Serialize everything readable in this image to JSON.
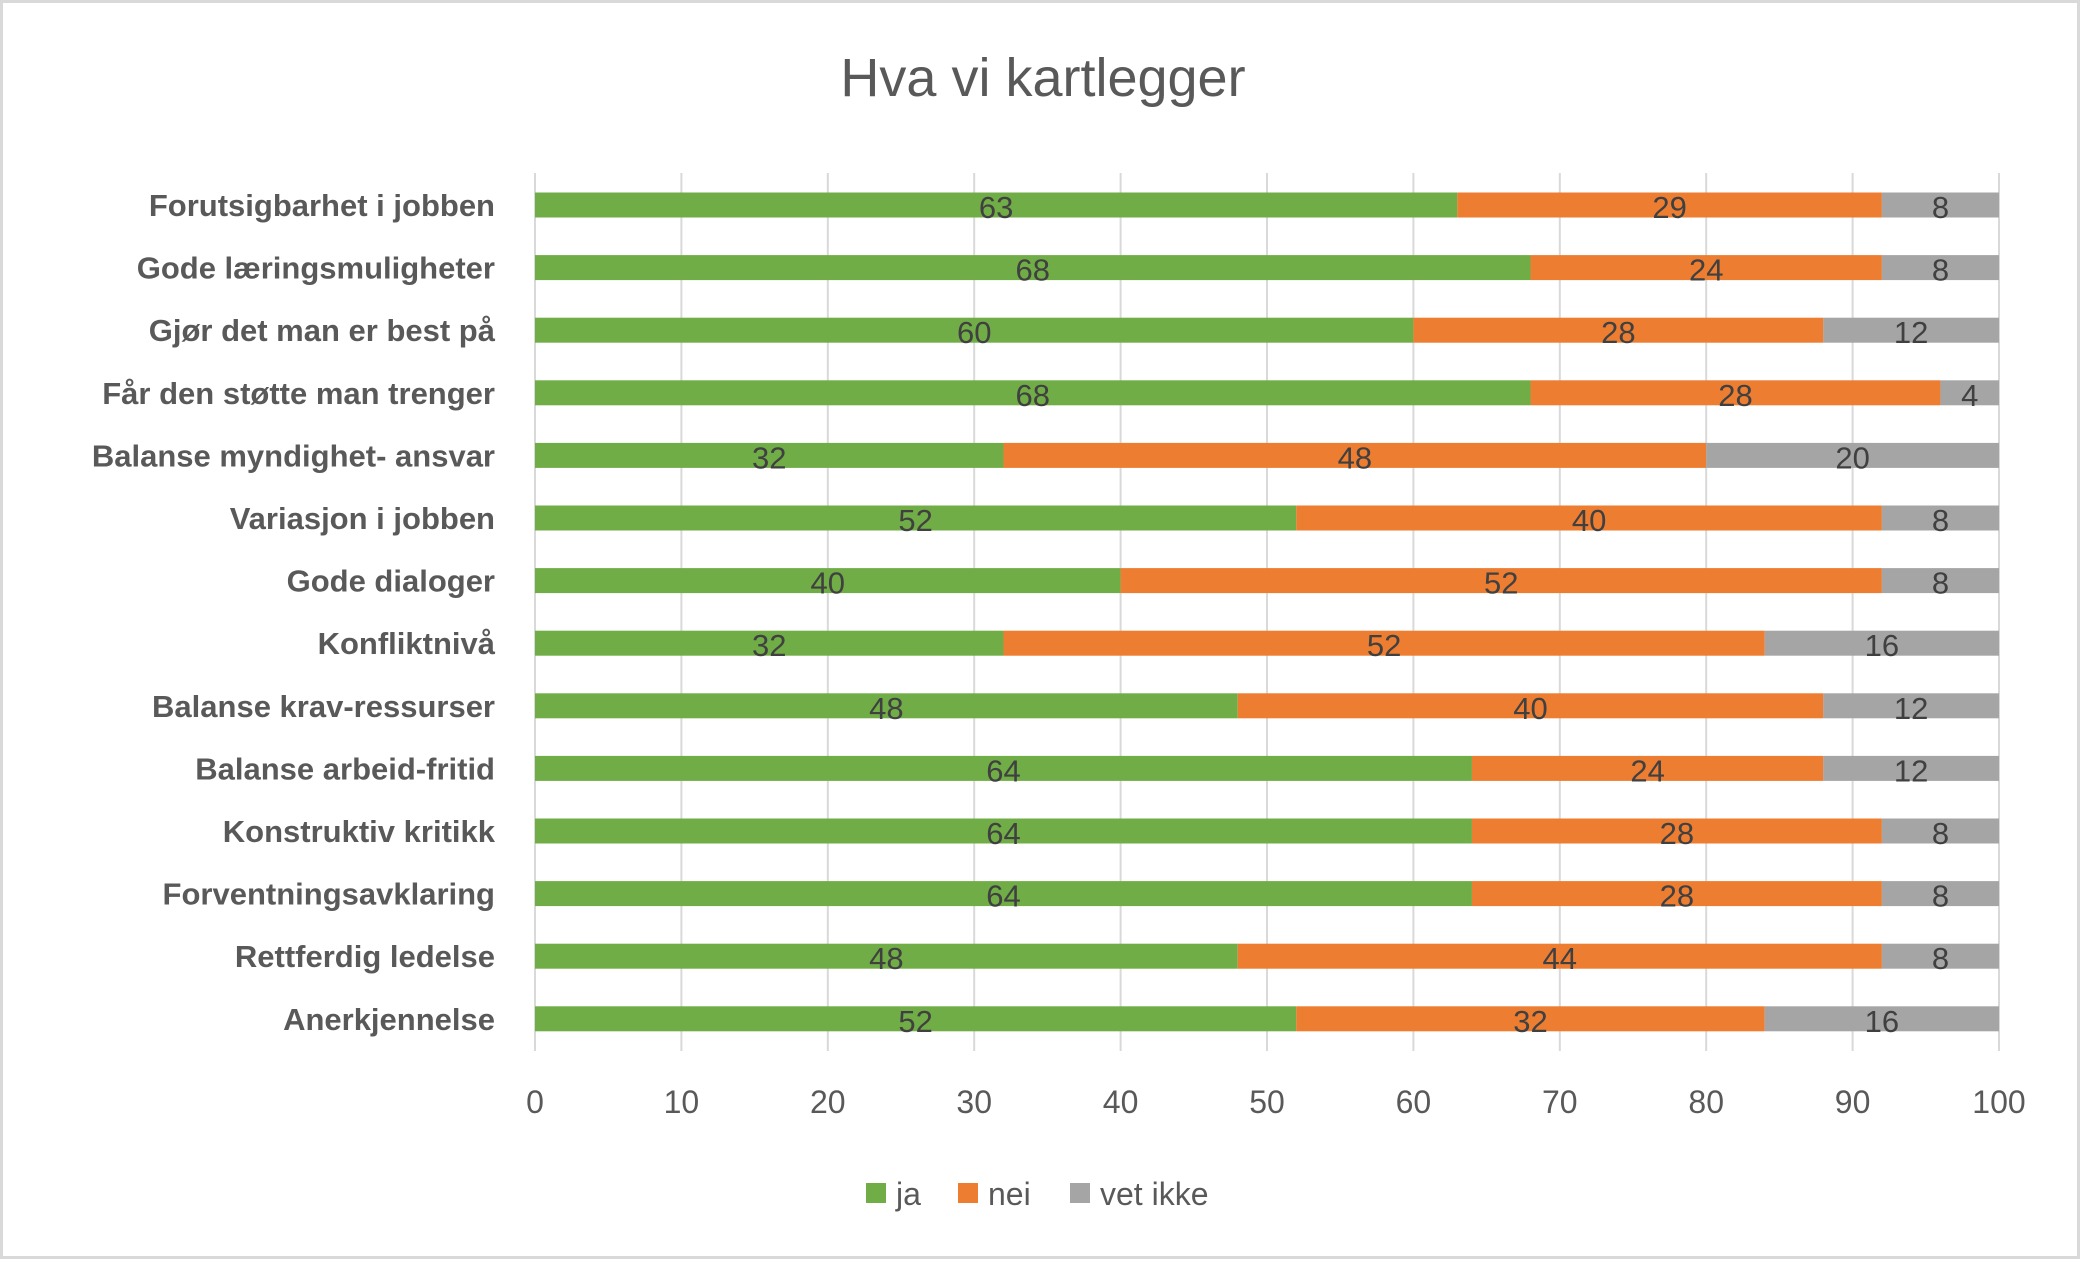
{
  "chart_data": {
    "type": "bar",
    "orientation": "horizontal",
    "stacked": true,
    "title": "Hva vi kartlegger",
    "xlabel": "",
    "ylabel": "",
    "xlim": [
      0,
      100
    ],
    "x_ticks": [
      "0",
      "10",
      "20",
      "30",
      "40",
      "50",
      "60",
      "70",
      "80",
      "90",
      "100"
    ],
    "grid": "vertical",
    "legend_position": "bottom",
    "categories": [
      "Forutsigbarhet i jobben",
      "Gode læringsmuligheter",
      "Gjør det man er best på",
      "Får den støtte man trenger",
      "Balanse myndighet- ansvar",
      "Variasjon i jobben",
      "Gode dialoger",
      "Konfliktnivå",
      "Balanse krav-ressurser",
      "Balanse arbeid-fritid",
      "Konstruktiv kritikk",
      "Forventningsavklaring",
      "Rettferdig ledelse",
      "Anerkjennelse"
    ],
    "series": [
      {
        "name": "ja",
        "color": "#70AD47",
        "values": [
          63,
          68,
          60,
          68,
          32,
          52,
          40,
          32,
          48,
          64,
          64,
          64,
          48,
          52
        ]
      },
      {
        "name": "nei",
        "color": "#ED7D31",
        "values": [
          29,
          24,
          28,
          28,
          48,
          40,
          52,
          52,
          40,
          24,
          28,
          28,
          44,
          32
        ]
      },
      {
        "name": "vet ikke",
        "color": "#A5A5A5",
        "values": [
          8,
          8,
          12,
          4,
          20,
          8,
          8,
          16,
          12,
          12,
          8,
          8,
          8,
          16
        ]
      }
    ]
  }
}
